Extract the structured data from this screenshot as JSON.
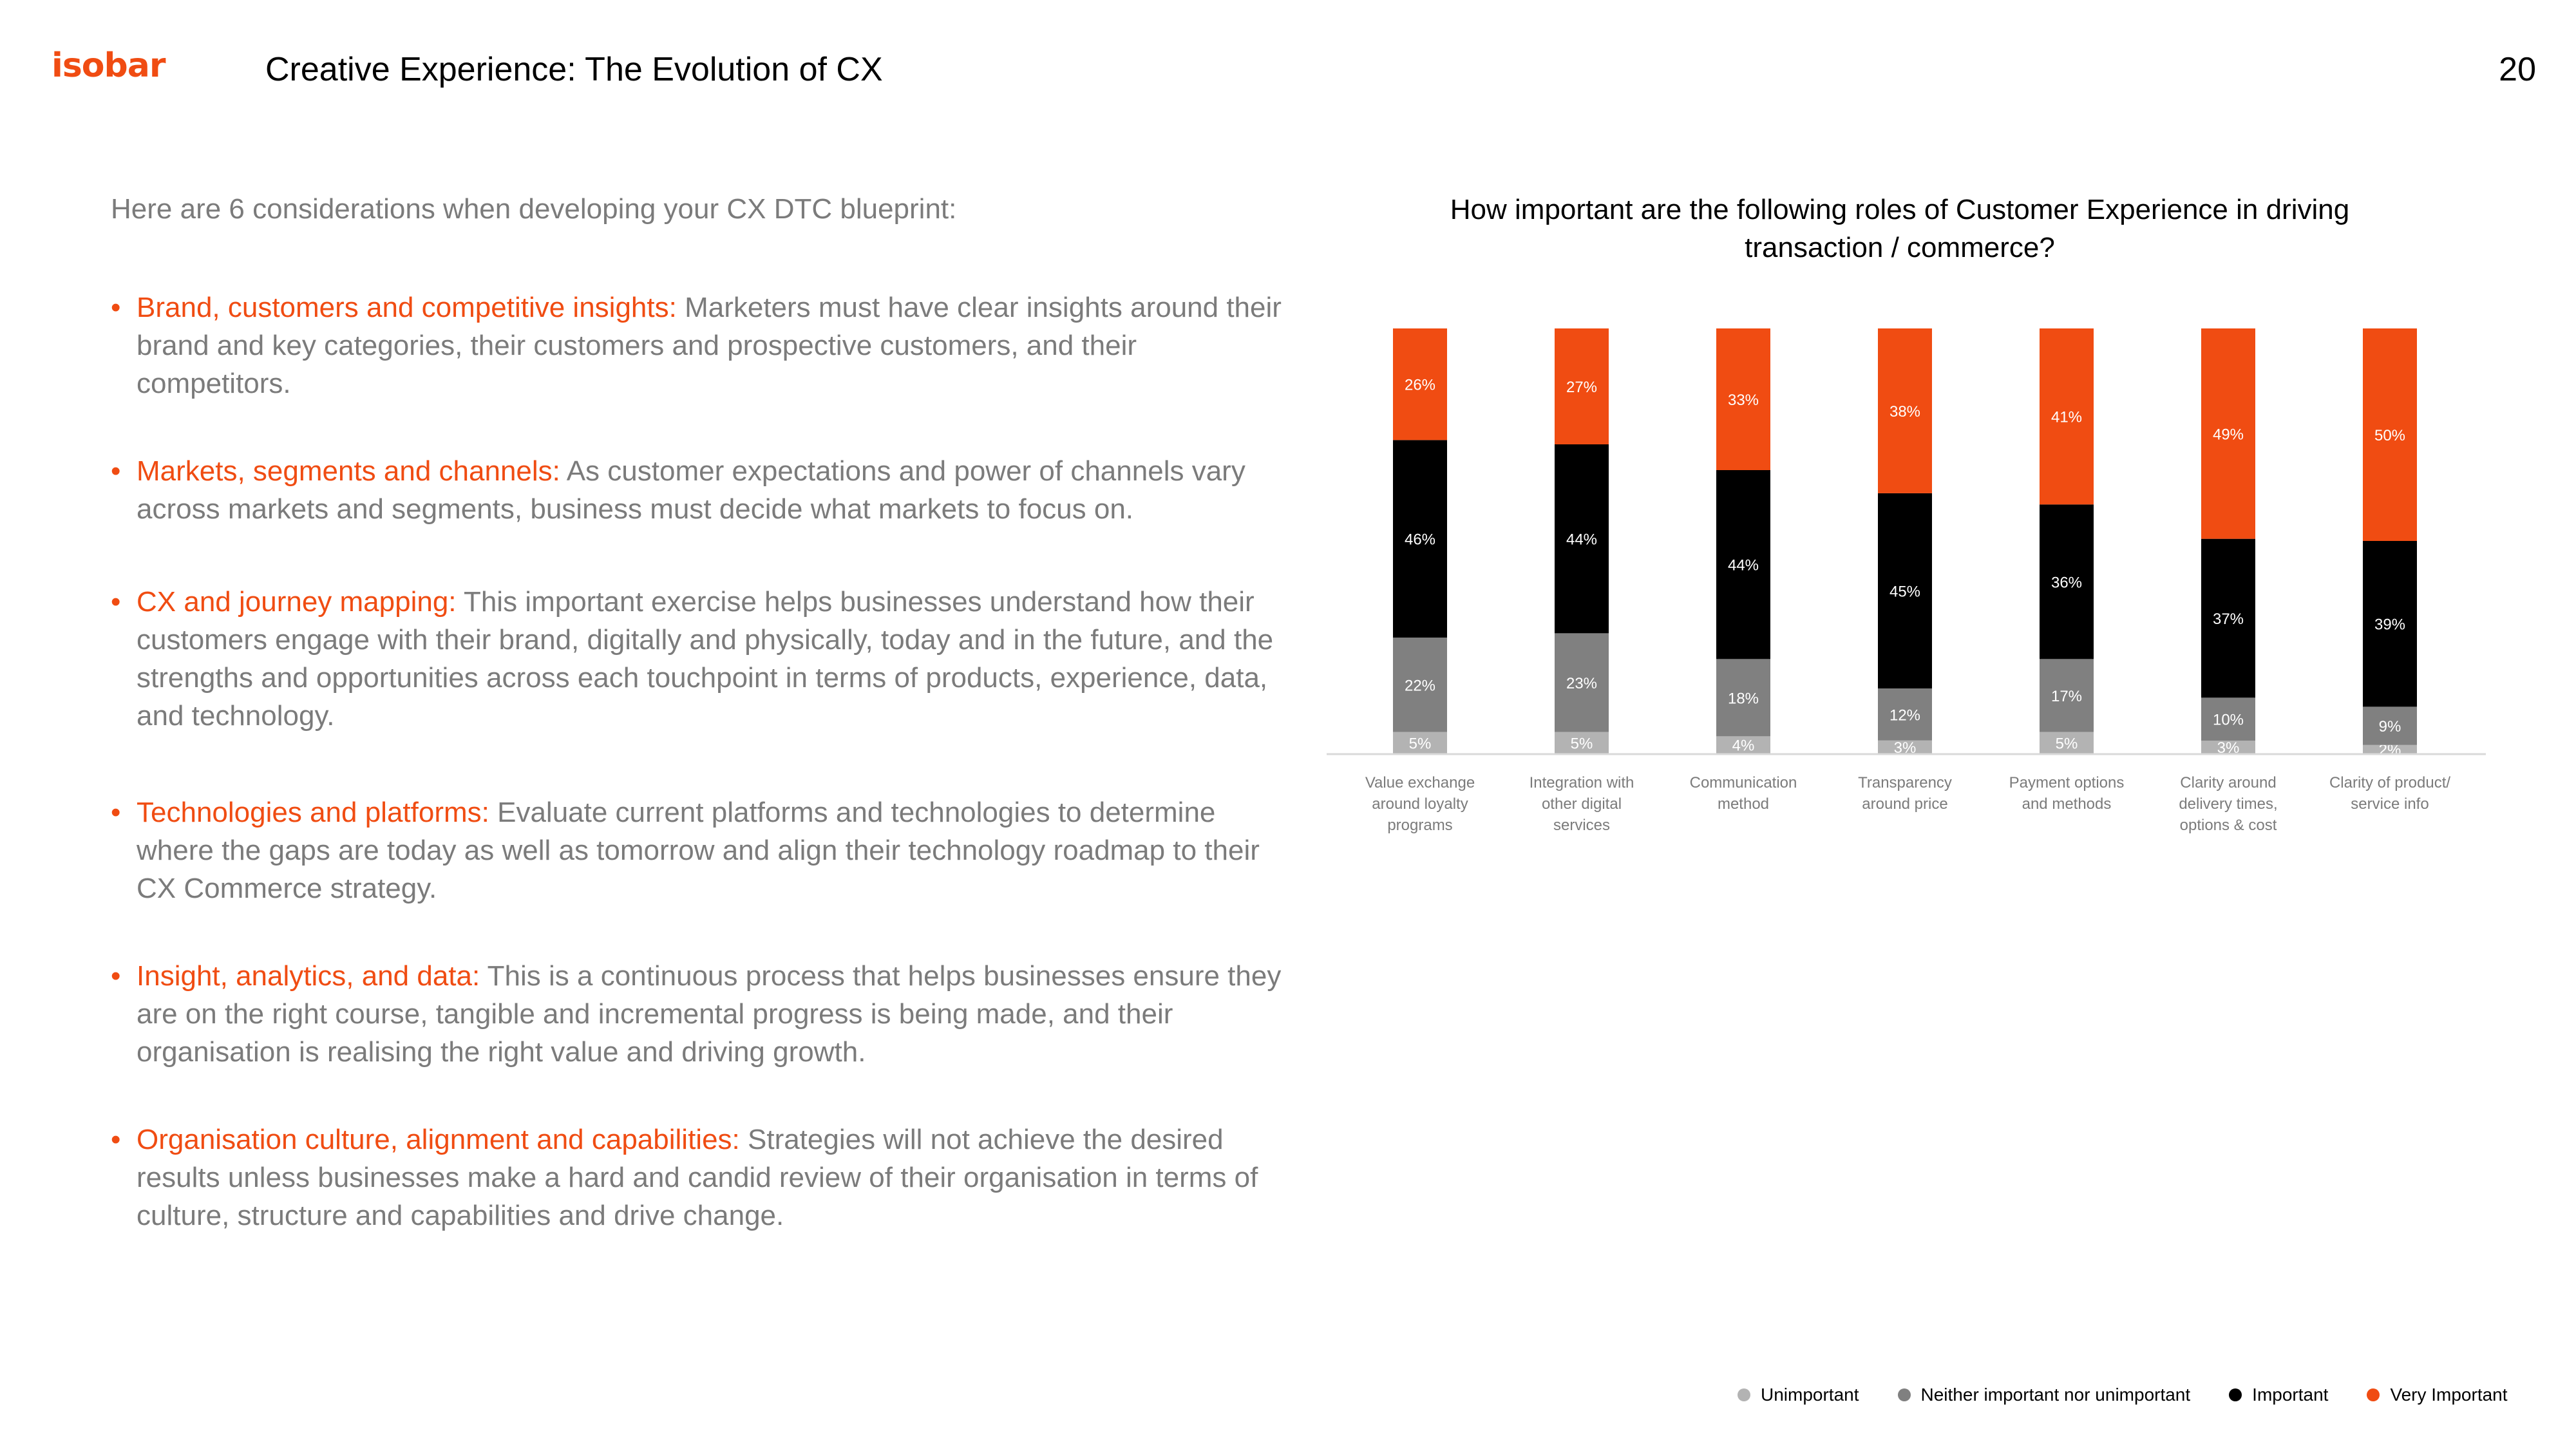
{
  "header": {
    "logo": "isobar",
    "title": "Creative Experience: The Evolution of CX",
    "page_number": "20"
  },
  "left": {
    "intro": "Here are 6 considerations when developing your CX DTC blueprint:",
    "bullets": [
      {
        "highlight": "Brand, customers and competitive insights:",
        "text": " Marketers must have clear insights around their brand and key categories, their customers and prospective customers, and their competitors."
      },
      {
        "highlight": "Markets, segments and channels:",
        "text": " As customer expectations and power of channels vary across markets and segments, business must decide what markets to focus on."
      },
      {
        "highlight": "CX and journey mapping:",
        "text": " This important exercise helps businesses understand how their customers engage with their brand, digitally and physically, today and in the future, and the strengths and opportunities across each touchpoint in terms of products, experience, data, and technology."
      },
      {
        "highlight": "Technologies and platforms:",
        "text": " Evaluate current platforms and technologies to determine where the gaps are today as well as tomorrow and align their technology roadmap to their CX Commerce strategy."
      },
      {
        "highlight": "Insight, analytics, and data:",
        "text": " This is a continuous process that helps businesses ensure they are on the right course, tangible and incremental progress is being made, and their organisation is realising the right value and driving growth."
      },
      {
        "highlight": "Organisation culture, alignment and capabilities:",
        "text": " Strategies will not achieve the desired results unless businesses make a hard and candid review of their organisation in terms of culture, structure and capabilities and drive change."
      }
    ]
  },
  "colors": {
    "accent": "#f04c12",
    "body_text": "#7b7b7b"
  },
  "chart_data": {
    "type": "bar",
    "stacked": true,
    "title": "How important are the following roles of Customer Experience in driving transaction / commerce?",
    "categories": [
      "Value exchange around loyalty programs",
      "Integration with other digital services",
      "Communication method",
      "Transparency around price",
      "Payment options and methods",
      "Clarity around delivery times, options & cost",
      "Clarity of product/ service info"
    ],
    "category_lines": [
      [
        "Value exchange",
        "around loyalty",
        "programs"
      ],
      [
        "Integration with",
        "other digital",
        "services"
      ],
      [
        "Communication",
        "method"
      ],
      [
        "Transparency",
        "around price"
      ],
      [
        "Payment options",
        "and methods"
      ],
      [
        "Clarity around",
        "delivery times,",
        "options & cost"
      ],
      [
        "Clarity of product/",
        "service info"
      ]
    ],
    "series": [
      {
        "name": "Unimportant",
        "color": "#b3b3b3",
        "label_color": "#ffffff",
        "values": [
          5,
          5,
          4,
          3,
          5,
          3,
          2
        ]
      },
      {
        "name": "Neither important nor unimportant",
        "color": "#808080",
        "label_color": "#ffffff",
        "values": [
          22,
          23,
          18,
          12,
          17,
          10,
          9
        ]
      },
      {
        "name": "Important",
        "color": "#000000",
        "label_color": "#ffffff",
        "values": [
          46,
          44,
          44,
          45,
          36,
          37,
          39
        ]
      },
      {
        "name": "Very Important",
        "color": "#f04c12",
        "label_color": "#ffffff",
        "values": [
          26,
          27,
          33,
          38,
          41,
          49,
          50
        ]
      }
    ],
    "ylim": [
      0,
      100
    ],
    "grid": false,
    "legend_position": "bottom-right"
  }
}
